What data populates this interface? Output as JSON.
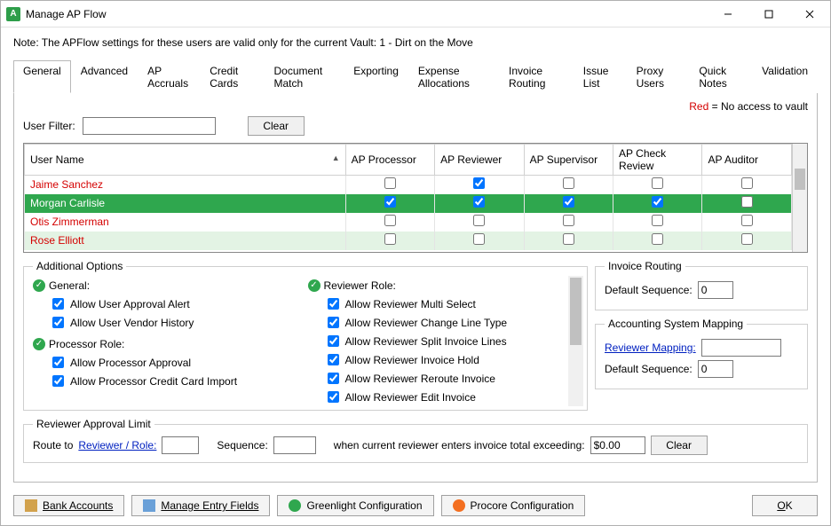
{
  "window": {
    "title": "Manage AP Flow"
  },
  "note": "Note:  The APFlow settings for these users are valid only for the current Vault: 1 - Dirt on the Move",
  "tabs": [
    "General",
    "Advanced",
    "AP Accruals",
    "Credit Cards",
    "Document Match",
    "Exporting",
    "Expense Allocations",
    "Invoice Routing",
    "Issue List",
    "Proxy Users",
    "Quick Notes",
    "Validation"
  ],
  "legend": {
    "red_label": "Red",
    "red_desc": " = No access to vault"
  },
  "filter": {
    "label": "User Filter:",
    "value": "",
    "clear": "Clear"
  },
  "grid": {
    "columns": [
      "User Name",
      "AP Processor",
      "AP Reviewer",
      "AP Supervisor",
      "AP Check Review",
      "AP Auditor"
    ],
    "rows": [
      {
        "name": "Jaime Sanchez",
        "red": true,
        "selected": false,
        "alt": false,
        "c": [
          false,
          true,
          false,
          false,
          false
        ]
      },
      {
        "name": "Morgan Carlisle",
        "red": false,
        "selected": true,
        "alt": false,
        "c": [
          true,
          true,
          true,
          true,
          false
        ]
      },
      {
        "name": "Otis Zimmerman",
        "red": true,
        "selected": false,
        "alt": false,
        "c": [
          false,
          false,
          false,
          false,
          false
        ]
      },
      {
        "name": "Rose Elliott",
        "red": true,
        "selected": false,
        "alt": true,
        "c": [
          false,
          false,
          false,
          false,
          false
        ]
      }
    ]
  },
  "additional": {
    "title": "Additional Options",
    "general": {
      "label": "General:",
      "items": [
        "Allow User Approval Alert",
        "Allow User Vendor History"
      ]
    },
    "processor": {
      "label": "Processor Role:",
      "items": [
        "Allow Processor Approval",
        "Allow Processor Credit Card Import"
      ]
    },
    "reviewer": {
      "label": "Reviewer Role:",
      "items": [
        "Allow Reviewer Multi Select",
        "Allow Reviewer Change Line Type",
        "Allow Reviewer Split Invoice Lines",
        "Allow Reviewer Invoice Hold",
        "Allow Reviewer Reroute Invoice",
        "Allow Reviewer Edit Invoice"
      ]
    }
  },
  "invoice_routing": {
    "title": "Invoice Routing",
    "default_seq_label": "Default Sequence:",
    "default_seq_value": "0"
  },
  "mapping": {
    "title": "Accounting System Mapping",
    "reviewer_mapping_label": "Reviewer Mapping:",
    "reviewer_mapping_value": "",
    "default_seq_label": "Default Sequence:",
    "default_seq_value": "0"
  },
  "reviewer_limit": {
    "title": "Reviewer Approval Limit",
    "route_to": "Route to",
    "reviewer_role": "Reviewer / Role:",
    "reviewer_value": "",
    "sequence_label": "Sequence:",
    "sequence_value": "",
    "mid_text": "when current reviewer enters invoice total exceeding:",
    "amount": "$0.00",
    "clear": "Clear"
  },
  "bottom": {
    "bank": "Bank Accounts",
    "fields": "Manage Entry Fields",
    "greenlight": "Greenlight Configuration",
    "procore": "Procore Configuration",
    "ok": "OK"
  }
}
